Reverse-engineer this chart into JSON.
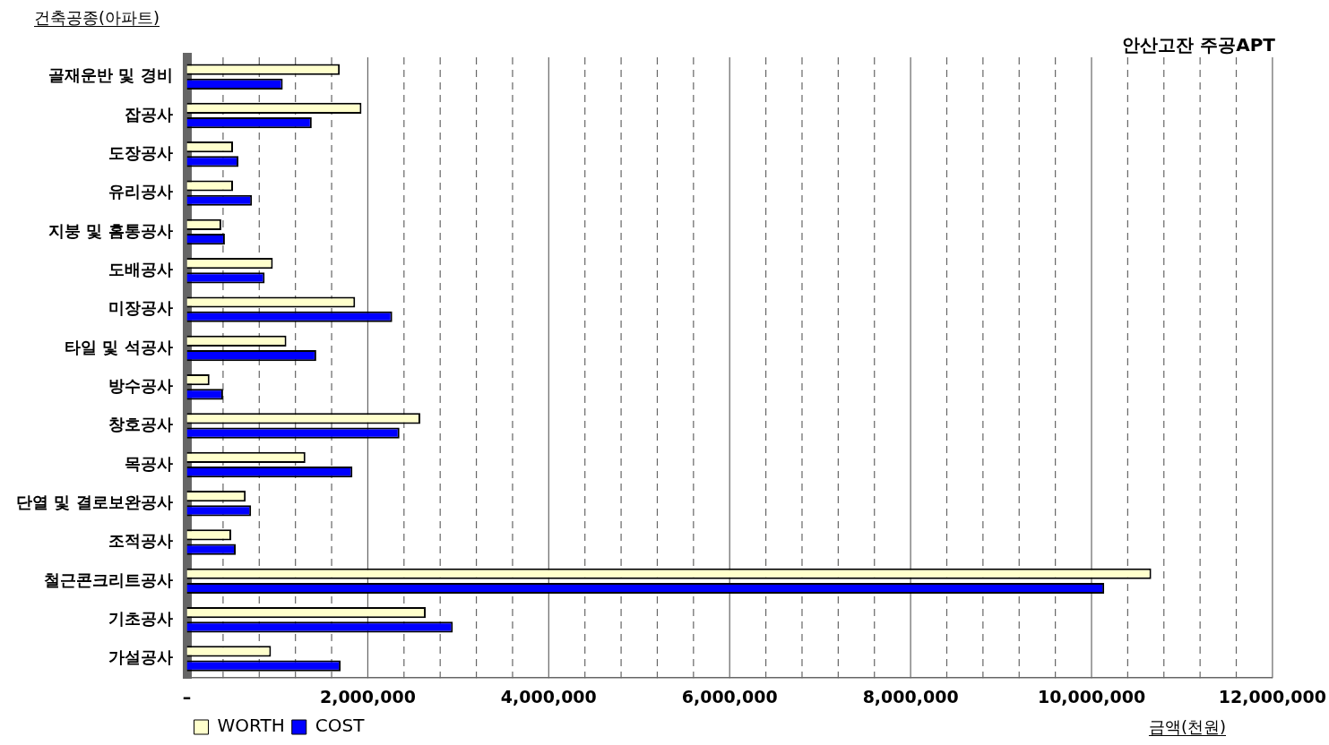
{
  "chart_data": {
    "type": "bar",
    "orientation": "horizontal",
    "title": "안산고잔 주공APT",
    "ylabel": "건축공종(아파트)",
    "xlabel": "금액(천원)",
    "categories": [
      "골재운반 및 경비",
      "잡공사",
      "도장공사",
      "유리공사",
      "지붕 및 홈통공사",
      "도배공사",
      "미장공사",
      "타일 및 석공사",
      "방수공사",
      "창호공사",
      "목공사",
      "단열 및 결로보완공사",
      "조적공사",
      "철근콘크리트공사",
      "기초공사",
      "가설공사"
    ],
    "series": [
      {
        "name": "WORTH",
        "color": "#ffffcc",
        "values": [
          1690000,
          1930000,
          510000,
          510000,
          380000,
          950000,
          1860000,
          1100000,
          250000,
          2580000,
          1310000,
          650000,
          490000,
          10660000,
          2640000,
          930000
        ]
      },
      {
        "name": "COST",
        "color": "#0000ff",
        "values": [
          1060000,
          1380000,
          570000,
          720000,
          420000,
          860000,
          2270000,
          1430000,
          400000,
          2350000,
          1830000,
          710000,
          540000,
          10140000,
          2940000,
          1700000
        ]
      }
    ],
    "xlim": [
      0,
      12000000
    ],
    "xticks": [
      {
        "value": 0,
        "label": "–"
      },
      {
        "value": 400000,
        "label": null
      },
      {
        "value": 800000,
        "label": null
      },
      {
        "value": 1200000,
        "label": null
      },
      {
        "value": 1600000,
        "label": null
      },
      {
        "value": 2000000,
        "label": "2,000,000"
      },
      {
        "value": 2400000,
        "label": null
      },
      {
        "value": 2800000,
        "label": null
      },
      {
        "value": 3200000,
        "label": null
      },
      {
        "value": 3600000,
        "label": null
      },
      {
        "value": 4000000,
        "label": "4,000,000"
      },
      {
        "value": 4400000,
        "label": null
      },
      {
        "value": 4800000,
        "label": null
      },
      {
        "value": 5200000,
        "label": null
      },
      {
        "value": 5600000,
        "label": null
      },
      {
        "value": 6000000,
        "label": "6,000,000"
      },
      {
        "value": 6400000,
        "label": null
      },
      {
        "value": 6800000,
        "label": null
      },
      {
        "value": 7200000,
        "label": null
      },
      {
        "value": 7600000,
        "label": null
      },
      {
        "value": 8000000,
        "label": "8,000,000"
      },
      {
        "value": 8400000,
        "label": null
      },
      {
        "value": 8800000,
        "label": null
      },
      {
        "value": 9200000,
        "label": null
      },
      {
        "value": 9600000,
        "label": null
      },
      {
        "value": 10000000,
        "label": "10,000,000"
      },
      {
        "value": 10400000,
        "label": null
      },
      {
        "value": 10800000,
        "label": null
      },
      {
        "value": 11200000,
        "label": null
      },
      {
        "value": 11600000,
        "label": null
      },
      {
        "value": 12000000,
        "label": "12,000,000"
      }
    ],
    "grid": "x",
    "legend": "bottom left"
  }
}
